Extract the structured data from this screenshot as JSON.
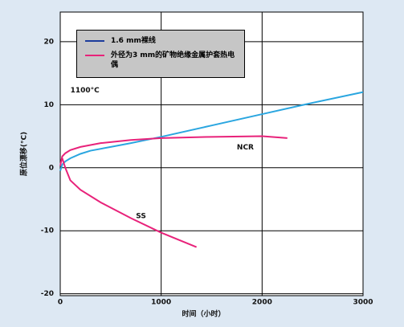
{
  "chart_data": {
    "type": "line",
    "x_label": "时间（小时）",
    "y_label": "原位漂移(°C)",
    "xlim": [
      0,
      3000
    ],
    "xticks": [
      0,
      1000,
      2000,
      3000
    ],
    "ylim": [
      -20.3,
      24.7
    ],
    "yticks": [
      -20,
      -10,
      0,
      10,
      20
    ],
    "grid": true,
    "legend": "upper left",
    "annotations": [
      {
        "text": "1100°C",
        "x": 100,
        "y": 12.3
      },
      {
        "text": "NCR",
        "x": 1750,
        "y": 3.2
      },
      {
        "text": "SS",
        "x": 750,
        "y": -7.7
      }
    ],
    "series": [
      {
        "name": "1.6 mm裸线",
        "color": "#2aa6e0",
        "legend_color": "#1c3c9c",
        "x": [
          0,
          20,
          50,
          100,
          200,
          300,
          500,
          700,
          1000,
          1500,
          2000,
          2500,
          3000
        ],
        "values": [
          -0.5,
          0.5,
          1,
          1.5,
          2.2,
          2.7,
          3.3,
          3.9,
          4.9,
          6.7,
          8.5,
          10.3,
          12
        ]
      },
      {
        "name": "外径为3 mm的矿物绝缘金属护套热电偶",
        "color": "#e8227a",
        "legend_color": "#e8227a",
        "x": [
          0,
          20,
          50,
          100,
          200,
          400,
          700,
          1000,
          1500,
          2000,
          2250,
          null,
          20,
          50,
          100,
          200,
          400,
          700,
          1000,
          1350
        ],
        "values": [
          0.3,
          1.8,
          2.3,
          2.8,
          3.3,
          3.9,
          4.4,
          4.7,
          4.9,
          5,
          4.7,
          null,
          1.5,
          0,
          -2,
          -3.5,
          -5.5,
          -8,
          -10.3,
          -12.6
        ]
      }
    ]
  }
}
